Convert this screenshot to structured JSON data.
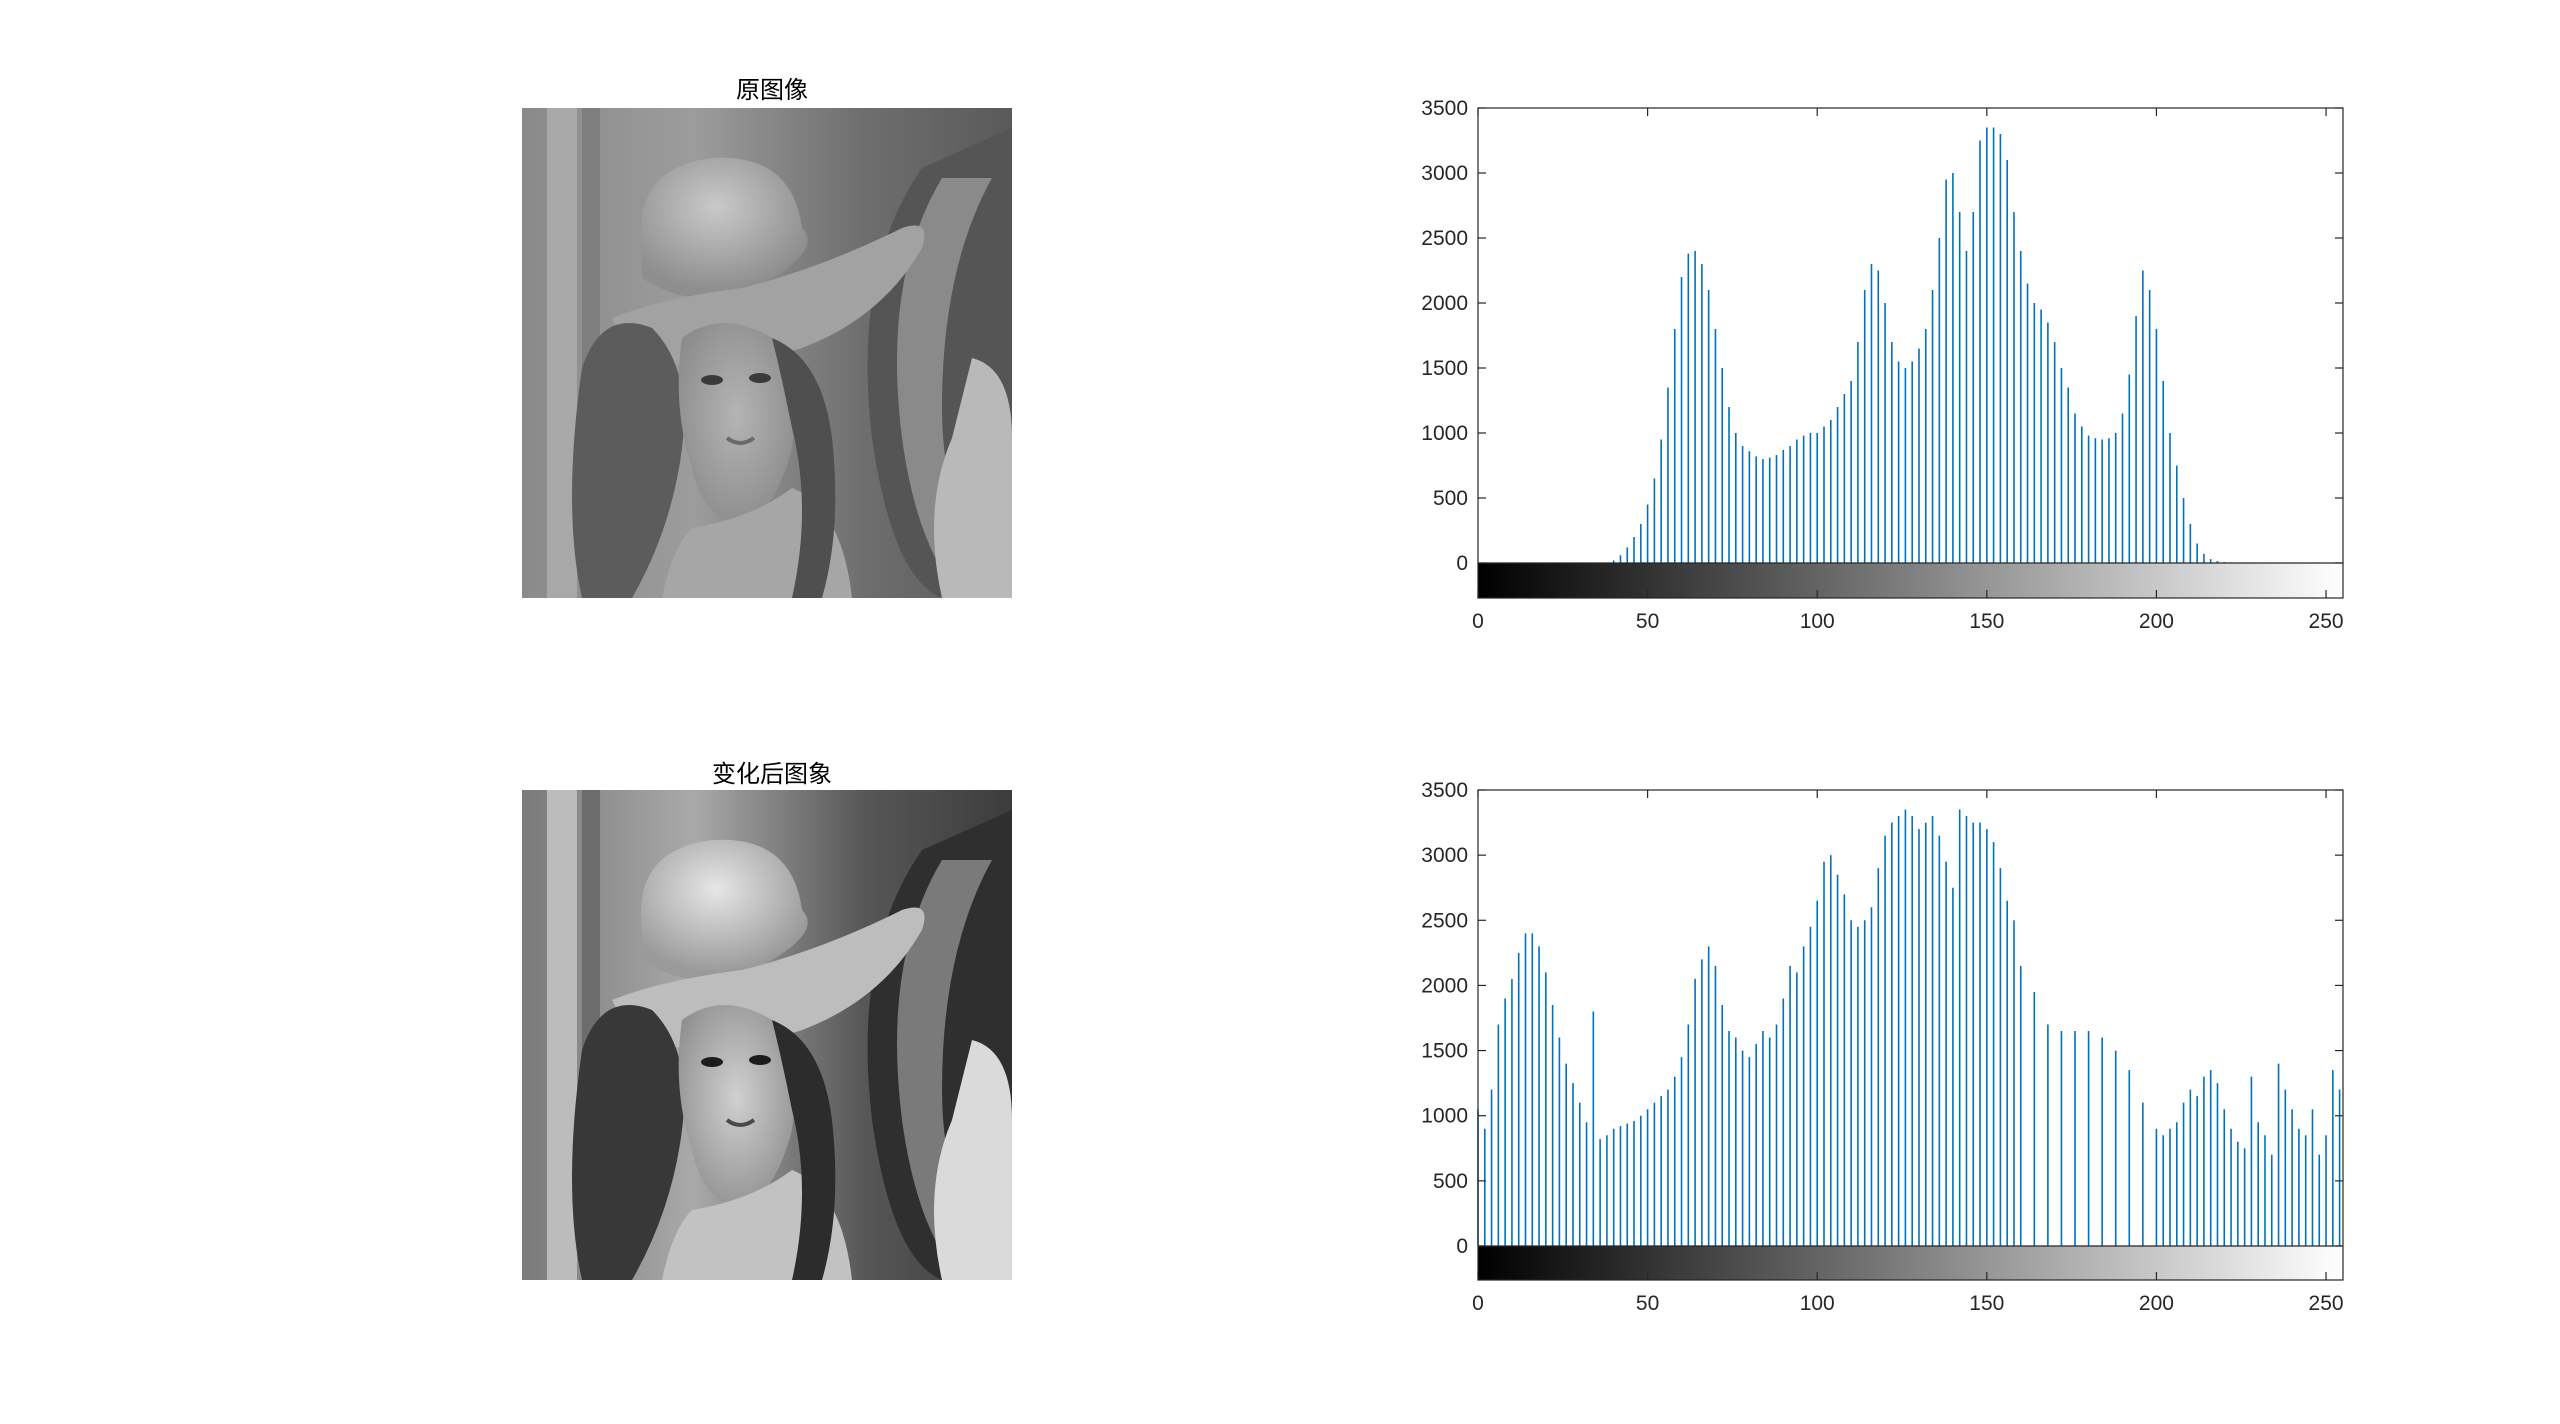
{
  "panels": {
    "original": {
      "title": "原图像"
    },
    "transformed": {
      "title": "变化后图象"
    }
  },
  "colors": {
    "bar": "#0072BD",
    "axis": "#262626"
  },
  "chart_data": [
    {
      "type": "bar",
      "name": "original-histogram",
      "title": "",
      "xlabel": "",
      "ylabel": "",
      "xlim": [
        0,
        255
      ],
      "ylim": [
        0,
        3500
      ],
      "xticks": [
        0,
        50,
        100,
        150,
        200,
        250
      ],
      "yticks": [
        0,
        500,
        1000,
        1500,
        2000,
        2500,
        3000,
        3500
      ],
      "colorbar": "grayscale",
      "x": [
        40,
        42,
        44,
        46,
        48,
        50,
        52,
        54,
        56,
        58,
        60,
        62,
        64,
        66,
        68,
        70,
        72,
        74,
        76,
        78,
        80,
        82,
        84,
        86,
        88,
        90,
        92,
        94,
        96,
        98,
        100,
        102,
        104,
        106,
        108,
        110,
        112,
        114,
        116,
        118,
        120,
        122,
        124,
        126,
        128,
        130,
        132,
        134,
        136,
        138,
        140,
        142,
        144,
        146,
        148,
        150,
        152,
        154,
        156,
        158,
        160,
        162,
        164,
        166,
        168,
        170,
        172,
        174,
        176,
        178,
        180,
        182,
        184,
        186,
        188,
        190,
        192,
        194,
        196,
        198,
        200,
        202,
        204,
        206,
        208,
        210,
        212,
        214,
        216,
        218,
        220,
        222,
        224,
        226,
        228
      ],
      "values": [
        20,
        60,
        120,
        200,
        300,
        450,
        650,
        950,
        1350,
        1800,
        2200,
        2380,
        2400,
        2300,
        2100,
        1800,
        1500,
        1200,
        1000,
        900,
        860,
        820,
        800,
        810,
        830,
        870,
        900,
        950,
        980,
        1000,
        1000,
        1050,
        1100,
        1200,
        1300,
        1400,
        1700,
        2100,
        2300,
        2250,
        2000,
        1700,
        1550,
        1500,
        1550,
        1650,
        1800,
        2100,
        2500,
        2950,
        3000,
        2700,
        2400,
        2700,
        3250,
        3350,
        3350,
        3300,
        3100,
        2700,
        2400,
        2150,
        2000,
        1950,
        1850,
        1700,
        1500,
        1350,
        1150,
        1050,
        980,
        960,
        950,
        960,
        1000,
        1150,
        1450,
        1900,
        2250,
        2100,
        1800,
        1400,
        1000,
        750,
        500,
        300,
        150,
        70,
        30,
        15,
        8,
        5,
        3,
        2,
        1
      ]
    },
    {
      "type": "bar",
      "name": "equalized-histogram",
      "title": "",
      "xlabel": "",
      "ylabel": "",
      "xlim": [
        0,
        255
      ],
      "ylim": [
        0,
        3500
      ],
      "xticks": [
        0,
        50,
        100,
        150,
        200,
        250
      ],
      "yticks": [
        0,
        500,
        1000,
        1500,
        2000,
        2500,
        3000,
        3500
      ],
      "colorbar": "grayscale",
      "x": [
        0,
        2,
        4,
        6,
        8,
        10,
        12,
        14,
        16,
        18,
        20,
        22,
        24,
        26,
        28,
        30,
        32,
        34,
        36,
        38,
        40,
        42,
        44,
        46,
        48,
        50,
        52,
        54,
        56,
        58,
        60,
        62,
        64,
        66,
        68,
        70,
        72,
        74,
        76,
        78,
        80,
        82,
        84,
        86,
        88,
        90,
        92,
        94,
        96,
        98,
        100,
        102,
        104,
        106,
        108,
        110,
        112,
        114,
        116,
        118,
        120,
        122,
        124,
        126,
        128,
        130,
        132,
        134,
        136,
        138,
        140,
        142,
        144,
        146,
        148,
        150,
        152,
        154,
        156,
        158,
        160,
        164,
        168,
        172,
        176,
        180,
        184,
        188,
        192,
        196,
        200,
        202,
        204,
        206,
        208,
        210,
        212,
        214,
        216,
        218,
        220,
        222,
        224,
        226,
        228,
        230,
        232,
        234,
        236,
        238,
        240,
        242,
        244,
        246,
        248,
        250,
        252,
        254
      ],
      "values": [
        1050,
        900,
        1200,
        1700,
        1900,
        2050,
        2250,
        2400,
        2400,
        2300,
        2100,
        1850,
        1600,
        1400,
        1250,
        1100,
        950,
        1800,
        820,
        850,
        900,
        920,
        940,
        960,
        1000,
        1050,
        1100,
        1150,
        1200,
        1300,
        1450,
        1700,
        2050,
        2200,
        2300,
        2150,
        1850,
        1650,
        1600,
        1500,
        1450,
        1550,
        1650,
        1600,
        1700,
        1900,
        2150,
        2100,
        2300,
        2450,
        2650,
        2950,
        3000,
        2850,
        2700,
        2500,
        2450,
        2500,
        2600,
        2900,
        3150,
        3250,
        3300,
        3350,
        3300,
        3200,
        3250,
        3300,
        3150,
        2950,
        2750,
        3350,
        3300,
        3250,
        3250,
        3200,
        3100,
        2900,
        2650,
        2500,
        2150,
        1950,
        1700,
        1650,
        1650,
        1650,
        1600,
        1500,
        1350,
        1100,
        900,
        850,
        900,
        950,
        1100,
        1200,
        1150,
        1300,
        1350,
        1250,
        1050,
        900,
        800,
        750,
        1300,
        950,
        850,
        700,
        1400,
        1200,
        1050,
        900,
        850,
        1050,
        700,
        850,
        1350,
        1200
      ]
    }
  ]
}
